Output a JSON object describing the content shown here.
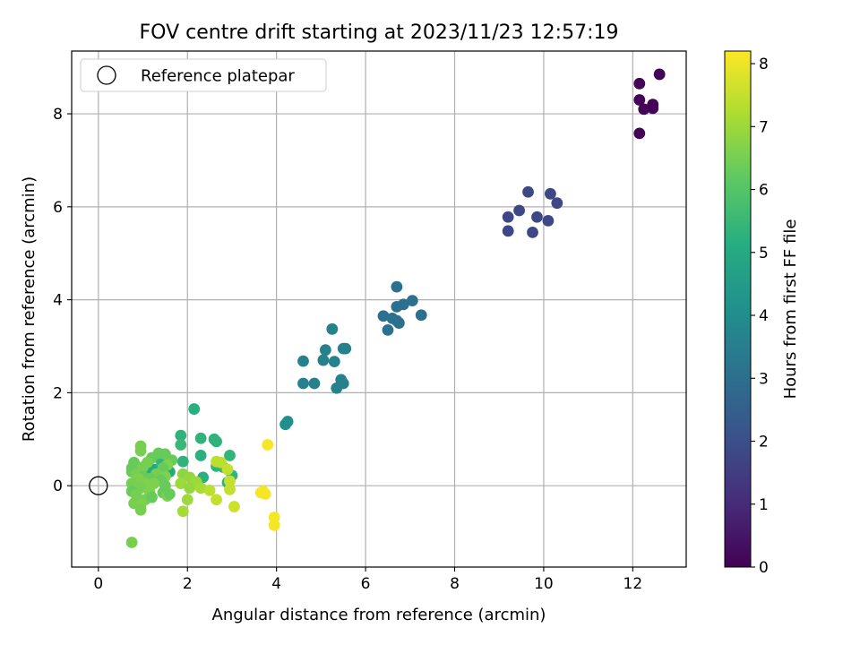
{
  "chart_data": {
    "type": "scatter",
    "title": "FOV centre drift starting at 2023/11/23 12:57:19",
    "xlabel": "Angular distance from reference (arcmin)",
    "ylabel": "Rotation from reference (arcmin)",
    "xlim": [
      -0.6,
      13.2
    ],
    "ylim": [
      -1.75,
      9.35
    ],
    "xticks": [
      0,
      2,
      4,
      6,
      8,
      10,
      12
    ],
    "yticks": [
      0,
      2,
      4,
      6,
      8
    ],
    "grid": true,
    "legend": {
      "placement": "top-left",
      "entries": [
        "Reference platepar"
      ]
    },
    "reference_point": {
      "x": 0,
      "y": 0
    },
    "colorbar": {
      "label": "Hours from first FF file",
      "range": [
        0,
        8.2
      ],
      "ticks": [
        0,
        1,
        2,
        3,
        4,
        5,
        6,
        7,
        8
      ],
      "colormap": "viridis"
    },
    "points": [
      {
        "x": 12.6,
        "y": 8.85,
        "c": 0.1
      },
      {
        "x": 12.15,
        "y": 8.65,
        "c": 0.1
      },
      {
        "x": 12.15,
        "y": 8.3,
        "c": 0.1
      },
      {
        "x": 12.45,
        "y": 8.2,
        "c": 0.1
      },
      {
        "x": 12.25,
        "y": 8.1,
        "c": 0.1
      },
      {
        "x": 12.45,
        "y": 8.12,
        "c": 0.1
      },
      {
        "x": 12.15,
        "y": 7.58,
        "c": 0.1
      },
      {
        "x": 9.65,
        "y": 6.32,
        "c": 1.8
      },
      {
        "x": 10.15,
        "y": 6.28,
        "c": 1.8
      },
      {
        "x": 10.3,
        "y": 6.08,
        "c": 1.8
      },
      {
        "x": 9.45,
        "y": 5.92,
        "c": 1.8
      },
      {
        "x": 9.2,
        "y": 5.78,
        "c": 1.8
      },
      {
        "x": 9.85,
        "y": 5.78,
        "c": 1.8
      },
      {
        "x": 10.1,
        "y": 5.7,
        "c": 1.8
      },
      {
        "x": 9.2,
        "y": 5.48,
        "c": 1.8
      },
      {
        "x": 9.75,
        "y": 5.45,
        "c": 1.8
      },
      {
        "x": 6.7,
        "y": 4.28,
        "c": 3.0
      },
      {
        "x": 7.05,
        "y": 3.98,
        "c": 3.0
      },
      {
        "x": 6.85,
        "y": 3.9,
        "c": 3.0
      },
      {
        "x": 6.7,
        "y": 3.85,
        "c": 3.0
      },
      {
        "x": 6.4,
        "y": 3.65,
        "c": 3.0
      },
      {
        "x": 7.25,
        "y": 3.67,
        "c": 3.0
      },
      {
        "x": 6.6,
        "y": 3.6,
        "c": 3.0
      },
      {
        "x": 6.7,
        "y": 3.55,
        "c": 3.0
      },
      {
        "x": 6.75,
        "y": 3.5,
        "c": 3.0
      },
      {
        "x": 6.5,
        "y": 3.35,
        "c": 3.0
      },
      {
        "x": 5.25,
        "y": 3.37,
        "c": 3.6
      },
      {
        "x": 5.5,
        "y": 2.95,
        "c": 3.6
      },
      {
        "x": 5.55,
        "y": 2.95,
        "c": 3.6
      },
      {
        "x": 5.1,
        "y": 2.92,
        "c": 3.6
      },
      {
        "x": 4.6,
        "y": 2.68,
        "c": 3.6
      },
      {
        "x": 5.05,
        "y": 2.7,
        "c": 3.6
      },
      {
        "x": 5.3,
        "y": 2.67,
        "c": 3.6
      },
      {
        "x": 5.45,
        "y": 2.28,
        "c": 3.6
      },
      {
        "x": 4.85,
        "y": 2.2,
        "c": 3.6
      },
      {
        "x": 4.6,
        "y": 2.2,
        "c": 3.6
      },
      {
        "x": 5.5,
        "y": 2.2,
        "c": 3.6
      },
      {
        "x": 5.35,
        "y": 2.1,
        "c": 3.6
      },
      {
        "x": 4.25,
        "y": 1.38,
        "c": 4.1
      },
      {
        "x": 4.2,
        "y": 1.32,
        "c": 4.1
      },
      {
        "x": 2.15,
        "y": 1.65,
        "c": 5.2
      },
      {
        "x": 1.85,
        "y": 1.08,
        "c": 5.3
      },
      {
        "x": 2.3,
        "y": 1.02,
        "c": 5.3
      },
      {
        "x": 2.6,
        "y": 1.0,
        "c": 5.3
      },
      {
        "x": 2.65,
        "y": 0.95,
        "c": 5.3
      },
      {
        "x": 1.85,
        "y": 0.88,
        "c": 5.5
      },
      {
        "x": 2.3,
        "y": 0.65,
        "c": 5.2
      },
      {
        "x": 2.95,
        "y": 0.65,
        "c": 5.4
      },
      {
        "x": 1.9,
        "y": 0.52,
        "c": 5.3
      },
      {
        "x": 1.4,
        "y": 0.55,
        "c": 5.4
      },
      {
        "x": 2.65,
        "y": 0.42,
        "c": 5.3
      },
      {
        "x": 2.8,
        "y": 0.4,
        "c": 5.4
      },
      {
        "x": 3.0,
        "y": 0.22,
        "c": 5.3
      },
      {
        "x": 2.35,
        "y": 0.18,
        "c": 5.2
      },
      {
        "x": 2.9,
        "y": 0.07,
        "c": 5.3
      },
      {
        "x": 1.6,
        "y": 0.3,
        "c": 5.0
      },
      {
        "x": 1.25,
        "y": 0.35,
        "c": 5.0
      },
      {
        "x": 1.05,
        "y": 0.28,
        "c": 5.1
      },
      {
        "x": 1.15,
        "y": 0.1,
        "c": 5.0
      },
      {
        "x": 0.9,
        "y": 0.12,
        "c": 5.1
      },
      {
        "x": 0.95,
        "y": 0.85,
        "c": 6.5
      },
      {
        "x": 0.95,
        "y": 0.75,
        "c": 6.5
      },
      {
        "x": 1.35,
        "y": 0.7,
        "c": 6.3
      },
      {
        "x": 1.5,
        "y": 0.68,
        "c": 6.3
      },
      {
        "x": 1.2,
        "y": 0.6,
        "c": 6.3
      },
      {
        "x": 1.65,
        "y": 0.55,
        "c": 6.3
      },
      {
        "x": 0.8,
        "y": 0.5,
        "c": 6.3
      },
      {
        "x": 1.1,
        "y": 0.5,
        "c": 6.5
      },
      {
        "x": 1.55,
        "y": 0.45,
        "c": 6.6
      },
      {
        "x": 0.75,
        "y": 0.38,
        "c": 6.3
      },
      {
        "x": 1.0,
        "y": 0.4,
        "c": 6.5
      },
      {
        "x": 1.45,
        "y": 0.38,
        "c": 6.3
      },
      {
        "x": 0.75,
        "y": 0.3,
        "c": 6.3
      },
      {
        "x": 0.85,
        "y": 0.25,
        "c": 6.5
      },
      {
        "x": 1.3,
        "y": 0.25,
        "c": 6.5
      },
      {
        "x": 1.0,
        "y": 0.2,
        "c": 6.3
      },
      {
        "x": 1.5,
        "y": 0.2,
        "c": 6.6
      },
      {
        "x": 0.9,
        "y": 0.15,
        "c": 6.6
      },
      {
        "x": 1.15,
        "y": 0.15,
        "c": 6.3
      },
      {
        "x": 1.4,
        "y": 0.12,
        "c": 6.3
      },
      {
        "x": 0.75,
        "y": 0.05,
        "c": 6.5
      },
      {
        "x": 1.05,
        "y": 0.05,
        "c": 6.6
      },
      {
        "x": 1.25,
        "y": 0.05,
        "c": 6.6
      },
      {
        "x": 0.95,
        "y": -0.05,
        "c": 6.5
      },
      {
        "x": 1.5,
        "y": 0.0,
        "c": 6.3
      },
      {
        "x": 0.75,
        "y": -0.12,
        "c": 6.3
      },
      {
        "x": 1.15,
        "y": -0.12,
        "c": 6.6
      },
      {
        "x": 1.45,
        "y": -0.15,
        "c": 6.3
      },
      {
        "x": 0.85,
        "y": -0.2,
        "c": 6.5
      },
      {
        "x": 1.55,
        "y": -0.22,
        "c": 6.6
      },
      {
        "x": 1.6,
        "y": -0.18,
        "c": 6.3
      },
      {
        "x": 1.05,
        "y": -0.3,
        "c": 6.5
      },
      {
        "x": 0.8,
        "y": -0.38,
        "c": 6.5
      },
      {
        "x": 0.95,
        "y": -0.42,
        "c": 6.6
      },
      {
        "x": 0.95,
        "y": -0.52,
        "c": 6.5
      },
      {
        "x": 1.2,
        "y": -0.25,
        "c": 6.3
      },
      {
        "x": 0.75,
        "y": -1.22,
        "c": 6.5
      },
      {
        "x": 1.9,
        "y": 0.25,
        "c": 6.8
      },
      {
        "x": 2.05,
        "y": 0.18,
        "c": 6.9
      },
      {
        "x": 1.85,
        "y": 0.05,
        "c": 7.0
      },
      {
        "x": 2.2,
        "y": 0.08,
        "c": 7.0
      },
      {
        "x": 2.05,
        "y": -0.05,
        "c": 6.9
      },
      {
        "x": 2.3,
        "y": -0.05,
        "c": 7.1
      },
      {
        "x": 2.0,
        "y": -0.3,
        "c": 7.0
      },
      {
        "x": 1.9,
        "y": -0.55,
        "c": 7.1
      },
      {
        "x": 2.65,
        "y": 0.52,
        "c": 7.4
      },
      {
        "x": 2.75,
        "y": 0.5,
        "c": 7.4
      },
      {
        "x": 2.9,
        "y": 0.35,
        "c": 7.5
      },
      {
        "x": 2.95,
        "y": 0.1,
        "c": 7.5
      },
      {
        "x": 2.5,
        "y": -0.1,
        "c": 7.4
      },
      {
        "x": 2.95,
        "y": -0.08,
        "c": 7.5
      },
      {
        "x": 2.65,
        "y": -0.3,
        "c": 7.5
      },
      {
        "x": 3.05,
        "y": -0.45,
        "c": 7.6
      },
      {
        "x": 3.8,
        "y": 0.88,
        "c": 8.1
      },
      {
        "x": 3.7,
        "y": -0.12,
        "c": 8.1
      },
      {
        "x": 3.75,
        "y": -0.18,
        "c": 8.1
      },
      {
        "x": 3.65,
        "y": -0.15,
        "c": 8.1
      },
      {
        "x": 3.95,
        "y": -0.68,
        "c": 8.1
      },
      {
        "x": 3.95,
        "y": -0.85,
        "c": 8.1
      }
    ]
  }
}
